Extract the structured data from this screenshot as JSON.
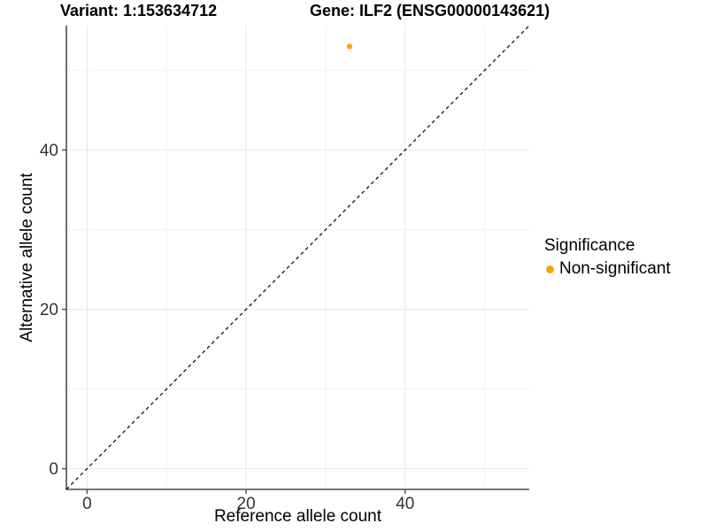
{
  "header": {
    "variant_title": "Variant: 1:153634712",
    "gene_title": "Gene: ILF2 (ENSG00000143621)"
  },
  "legend": {
    "title": "Significance",
    "items": [
      {
        "label": "Non-significant",
        "color": "#FFA500"
      }
    ]
  },
  "chart_data": {
    "type": "scatter",
    "title": "Variant: 1:153634712  Gene: ILF2 (ENSG00000143621)",
    "xlabel": "Reference allele count",
    "ylabel": "Alternative allele count",
    "xlim": [
      -2.6,
      55.6
    ],
    "ylim": [
      -2.6,
      55.6
    ],
    "x_ticks": [
      0,
      20,
      40
    ],
    "y_ticks": [
      0,
      20,
      40
    ],
    "x_minor_gridlines": [
      10,
      30,
      50
    ],
    "y_minor_gridlines": [
      10,
      30,
      50
    ],
    "grid": true,
    "legend_position": "right",
    "identity_line": {
      "style": "dashed",
      "color": "#000000",
      "slope": 1,
      "intercept": 0
    },
    "series": [
      {
        "name": "Non-significant",
        "color": "#FFA500",
        "points": [
          {
            "x": 33,
            "y": 53
          }
        ]
      }
    ]
  },
  "colors": {
    "background": "#ffffff",
    "axis_line": "#4d4d4d",
    "tick_label": "#333333",
    "grid_major": "#e8e8e8",
    "grid_minor": "#f3f3f3",
    "identity_line": "#000000"
  }
}
